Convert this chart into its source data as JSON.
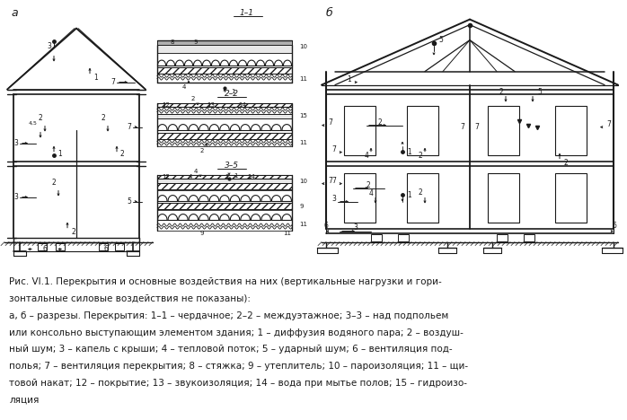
{
  "figure_width": 6.98,
  "figure_height": 4.68,
  "dpi": 100,
  "background_color": "#ffffff",
  "caption_lines": [
    "Рис. VI.1. Перекрытия и основные воздействия на них (вертикальные нагрузки и гори-",
    "зонтальные силовые воздействия не показаны):",
    "а, б – разрезы. Перекрытия: 1–1 – чердачное; 2–2 – междуэтажное; 3–3 – над подпольем",
    "или консольно выступающим элементом здания; 1 – диффузия водяного пара; 2 – воздуш-",
    "ный шум; 3 – капель с крыши; 4 – тепловой поток; 5 – ударный шум; 6 – вентиляция под-",
    "полья; 7 – вентиляция перекрытия; 8 – стяжка; 9 – утеплитель; 10 – пароизоляция; 11 – щи-",
    "товой накат; 12 – покрытие; 13 – звукоизоляция; 14 – вода при мытье полов; 15 – гидроизо-",
    "ляция"
  ],
  "caption_font_size": 7.5,
  "line_color": "#1a1a1a",
  "label_a": "а",
  "label_b": "б"
}
